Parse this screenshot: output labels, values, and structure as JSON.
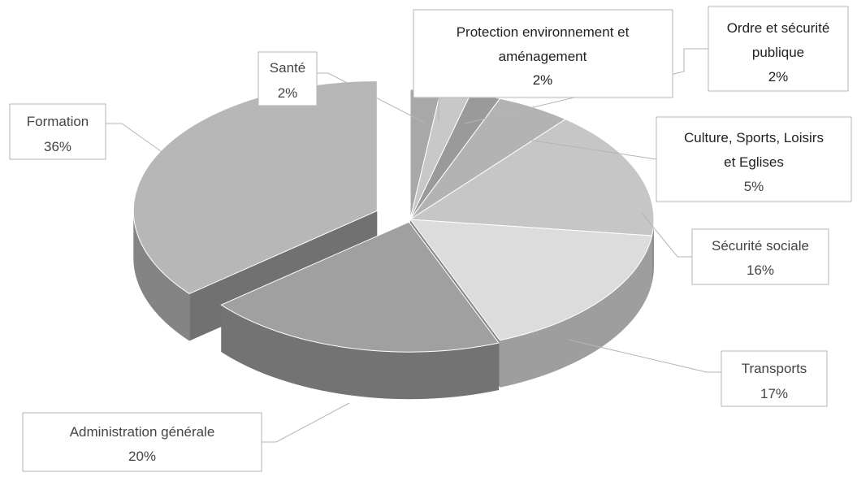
{
  "chart_data": {
    "type": "pie",
    "style": "3d-exploded",
    "title": "",
    "slices": [
      {
        "name": "Santé",
        "value": 2,
        "label": "2%",
        "color": "#a8a8a8"
      },
      {
        "name": "Protection environnement et aménagement",
        "value": 2,
        "label": "2%",
        "color": "#c8c8c8"
      },
      {
        "name": "Ordre et sécurité publique",
        "value": 2,
        "label": "2%",
        "color": "#9a9a9a"
      },
      {
        "name": "Culture, Sports, Loisirs et Eglises",
        "value": 5,
        "label": "5%",
        "color": "#b3b3b3"
      },
      {
        "name": "Sécurité sociale",
        "value": 16,
        "label": "16%",
        "color": "#c6c6c6"
      },
      {
        "name": "Transports",
        "value": 17,
        "label": "17%",
        "color": "#dcdcdc"
      },
      {
        "name": "Administration générale",
        "value": 20,
        "label": "20%",
        "color": "#a0a0a0"
      },
      {
        "name": "Formation",
        "value": 36,
        "label": "36%",
        "color": "#b7b7b7"
      }
    ],
    "labels": {
      "sante": {
        "lines": [
          "Santé"
        ],
        "pct": "2%"
      },
      "protection": {
        "lines": [
          "Protection environnement et",
          "aménagement"
        ],
        "pct": "2%"
      },
      "ordre": {
        "lines": [
          "Ordre et sécurité",
          "publique"
        ],
        "pct": "2%"
      },
      "culture": {
        "lines": [
          "Culture, Sports, Loisirs",
          "et Eglises"
        ],
        "pct": "5%"
      },
      "securite": {
        "lines": [
          "Sécurité sociale"
        ],
        "pct": "16%"
      },
      "transports": {
        "lines": [
          "Transports"
        ],
        "pct": "17%"
      },
      "administration": {
        "lines": [
          "Administration générale"
        ],
        "pct": "20%"
      },
      "formation": {
        "lines": [
          "Formation"
        ],
        "pct": "36%"
      }
    }
  }
}
